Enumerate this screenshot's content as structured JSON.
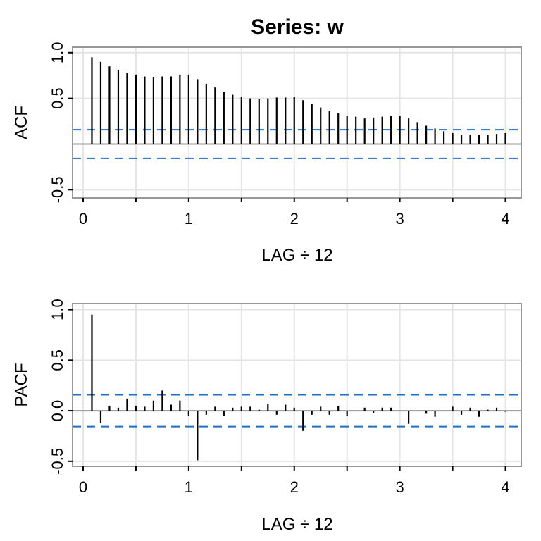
{
  "chart_data": [
    {
      "type": "bar",
      "title": "Series:  w",
      "xlabel": "LAG ÷ 12",
      "ylabel": "ACF",
      "xlim": [
        -0.1,
        4.15
      ],
      "ylim": [
        -0.59,
        1.06
      ],
      "xticks": [
        {
          "v": 0,
          "label": "0"
        },
        {
          "v": 1,
          "label": "1"
        },
        {
          "v": 2,
          "label": "2"
        },
        {
          "v": 3,
          "label": "3"
        },
        {
          "v": 4,
          "label": "4"
        }
      ],
      "yticks": [
        {
          "v": 1,
          "label": "1.0"
        },
        {
          "v": 0.5,
          "label": "0.5"
        },
        {
          "v": -0.5,
          "label": "-0.5"
        }
      ],
      "grid": true,
      "conf_limit": 0.157,
      "lag_step": 0.0833333,
      "values": [
        0.95,
        0.9,
        0.85,
        0.81,
        0.78,
        0.76,
        0.74,
        0.73,
        0.74,
        0.74,
        0.76,
        0.76,
        0.71,
        0.66,
        0.62,
        0.57,
        0.54,
        0.52,
        0.5,
        0.49,
        0.5,
        0.51,
        0.51,
        0.52,
        0.48,
        0.44,
        0.4,
        0.36,
        0.34,
        0.31,
        0.3,
        0.28,
        0.29,
        0.3,
        0.31,
        0.31,
        0.28,
        0.24,
        0.2,
        0.17,
        0.14,
        0.12,
        0.1,
        0.1,
        0.1,
        0.1,
        0.11,
        0.12
      ]
    },
    {
      "type": "bar",
      "xlabel": "LAG ÷ 12",
      "ylabel": "PACF",
      "xlim": [
        -0.1,
        4.15
      ],
      "ylim": [
        -0.55,
        1.06
      ],
      "xticks": [
        {
          "v": 0,
          "label": "0"
        },
        {
          "v": 1,
          "label": "1"
        },
        {
          "v": 2,
          "label": "2"
        },
        {
          "v": 3,
          "label": "3"
        },
        {
          "v": 4,
          "label": "4"
        }
      ],
      "yticks": [
        {
          "v": 1,
          "label": "1.0"
        },
        {
          "v": 0.5,
          "label": "0.5"
        },
        {
          "v": 0,
          "label": "0.0"
        },
        {
          "v": -0.5,
          "label": "-0.5"
        }
      ],
      "grid": true,
      "conf_limit": 0.157,
      "lag_step": 0.0833333,
      "values": [
        0.95,
        -0.12,
        0.05,
        0.03,
        0.12,
        0.05,
        0.04,
        0.1,
        0.2,
        0.06,
        0.1,
        -0.05,
        -0.49,
        -0.04,
        0.04,
        -0.05,
        0.03,
        0.04,
        0.04,
        0.01,
        0.07,
        -0.04,
        0.06,
        0.03,
        -0.2,
        -0.04,
        0.04,
        -0.04,
        0.05,
        -0.05,
        0.0,
        0.03,
        -0.02,
        0.03,
        0.03,
        0.0,
        -0.13,
        0.0,
        -0.03,
        -0.06,
        0.0,
        0.04,
        -0.04,
        0.03,
        -0.06,
        0.01,
        0.03,
        -0.01
      ]
    }
  ],
  "colors": {
    "bar": "#000000",
    "conf": "#1f6fc7",
    "grid": "#e5e5e5",
    "frame": "#999999"
  }
}
